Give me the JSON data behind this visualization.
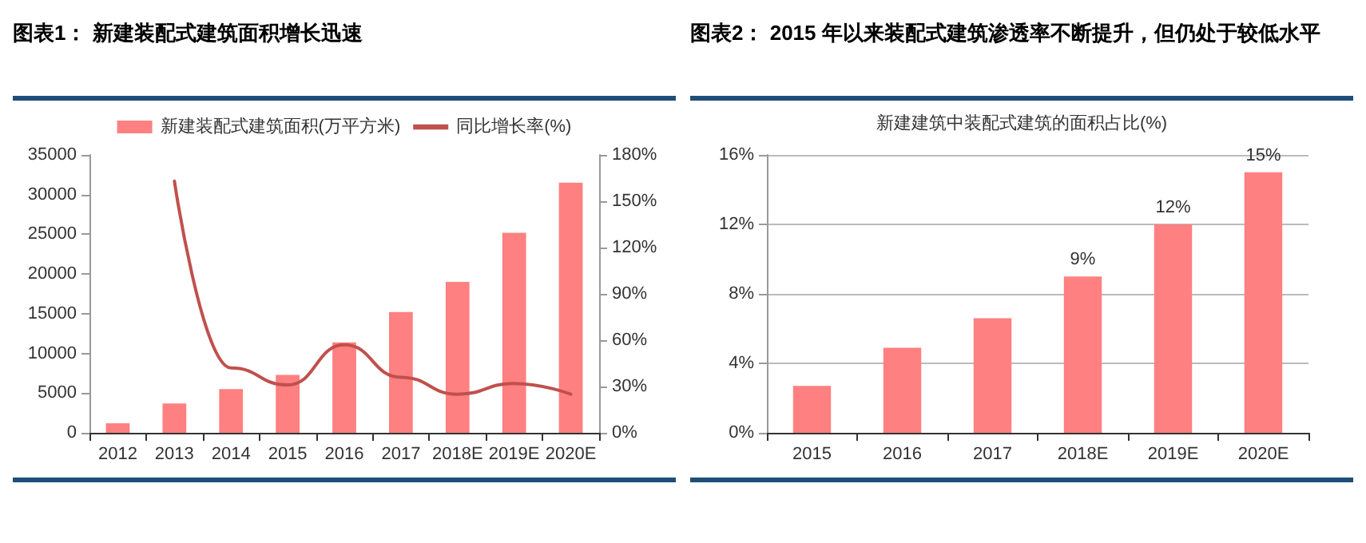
{
  "chart_data": [
    {
      "type": "bar",
      "title": "图表1： 新建装配式建筑面积增长迅速",
      "categories": [
        "2012",
        "2013",
        "2014",
        "2015",
        "2016",
        "2017",
        "2018E",
        "2019E",
        "2020E"
      ],
      "series": [
        {
          "name": "新建装配式建筑面积(万平方米)",
          "type": "bar",
          "color": "#ff8080",
          "values": [
            1200,
            3700,
            5500,
            7300,
            11400,
            15200,
            19000,
            25200,
            31500
          ]
        },
        {
          "name": "同比增长率(%)",
          "type": "line",
          "axis": "y2",
          "color": "#c0504d",
          "values": [
            null,
            163,
            42,
            31,
            57,
            36,
            25,
            32,
            25
          ]
        }
      ],
      "ylim": [
        0,
        35000
      ],
      "yticks": [
        0,
        5000,
        10000,
        15000,
        20000,
        25000,
        30000,
        35000
      ],
      "y2lim": [
        0,
        180
      ],
      "y2ticks": [
        {
          "value": 0,
          "label": "0%"
        },
        {
          "value": 30,
          "label": "30%"
        },
        {
          "value": 60,
          "label": "60%"
        },
        {
          "value": 90,
          "label": "90%"
        },
        {
          "value": 120,
          "label": "120%"
        },
        {
          "value": 150,
          "label": "150%"
        },
        {
          "value": 180,
          "label": "180%"
        }
      ],
      "legend": "top",
      "marker": "none"
    },
    {
      "type": "bar",
      "title": "图表2： 2015 年以来装配式建筑渗透率不断提升，但仍处于较低水平",
      "subtitle": "新建建筑中装配式建筑的面积占比(%)",
      "categories": [
        "2015",
        "2016",
        "2017",
        "2018E",
        "2019E",
        "2020E"
      ],
      "values": [
        2.7,
        4.9,
        6.6,
        9,
        12,
        15
      ],
      "color": "#ff8080",
      "value_labels": [
        null,
        null,
        null,
        "9%",
        "12%",
        "15%"
      ],
      "ylim": [
        0,
        16
      ],
      "yticks": [
        {
          "value": 0,
          "label": "0%"
        },
        {
          "value": 4,
          "label": "4%"
        },
        {
          "value": 8,
          "label": "8%"
        },
        {
          "value": 12,
          "label": "12%"
        },
        {
          "value": 16,
          "label": "16%"
        }
      ],
      "grid": "y"
    }
  ]
}
